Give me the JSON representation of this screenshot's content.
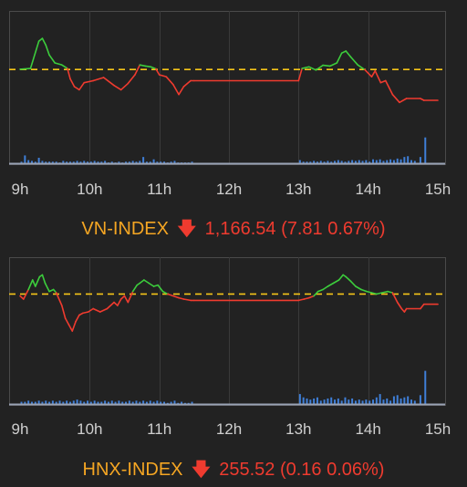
{
  "colors": {
    "up": "#3ccd3c",
    "down": "#ef3b2f",
    "reference": "#f5c518",
    "volume": "#3f7fd8",
    "index_name": "#f5a623",
    "frame": "#4a4a4a",
    "baseline": "#9aa3b5"
  },
  "chart_data": [
    {
      "type": "line",
      "x_ticks": [
        "9h",
        "10h",
        "11h",
        "12h",
        "13h",
        "14h",
        "15h"
      ],
      "xlim": [
        9,
        15
      ],
      "ylim": [
        1155,
        1185
      ],
      "reference": 1174.35,
      "index": {
        "name": "VN-INDEX",
        "arrow": "🡇",
        "value_text": "1,166.54 (7.81 0.67%)"
      },
      "series": [
        {
          "values": [
            [
              9.0,
              1174.4
            ],
            [
              9.15,
              1174.6
            ],
            [
              9.27,
              1181.5
            ],
            [
              9.32,
              1182.2
            ],
            [
              9.37,
              1180.5
            ],
            [
              9.42,
              1178.0
            ],
            [
              9.5,
              1176.0
            ],
            [
              9.6,
              1175.5
            ],
            [
              9.68,
              1174.6
            ],
            [
              9.72,
              1172.0
            ],
            [
              9.78,
              1170.0
            ],
            [
              9.85,
              1169.2
            ],
            [
              9.92,
              1171.0
            ],
            [
              10.05,
              1171.5
            ],
            [
              10.2,
              1172.3
            ],
            [
              10.35,
              1170.3
            ],
            [
              10.45,
              1169.2
            ],
            [
              10.55,
              1170.8
            ],
            [
              10.65,
              1173.0
            ],
            [
              10.72,
              1175.5
            ],
            [
              10.8,
              1175.2
            ],
            [
              10.88,
              1175.0
            ],
            [
              10.95,
              1174.5
            ],
            [
              11.0,
              1173.0
            ],
            [
              11.1,
              1172.5
            ],
            [
              11.2,
              1170.5
            ],
            [
              11.28,
              1168.0
            ],
            [
              11.35,
              1170.0
            ],
            [
              11.45,
              1171.5
            ],
            [
              11.5,
              1171.5
            ],
            [
              13.0,
              1171.5
            ],
            [
              13.05,
              1174.6
            ],
            [
              13.15,
              1175.0
            ],
            [
              13.25,
              1174.2
            ],
            [
              13.35,
              1175.4
            ],
            [
              13.45,
              1175.2
            ],
            [
              13.55,
              1176.0
            ],
            [
              13.62,
              1178.5
            ],
            [
              13.68,
              1179.0
            ],
            [
              13.75,
              1177.5
            ],
            [
              13.85,
              1175.5
            ],
            [
              13.95,
              1174.3
            ],
            [
              14.05,
              1172.5
            ],
            [
              14.1,
              1174.0
            ],
            [
              14.18,
              1171.0
            ],
            [
              14.25,
              1171.5
            ],
            [
              14.35,
              1168.0
            ],
            [
              14.45,
              1166.0
            ],
            [
              14.55,
              1167.0
            ],
            [
              14.75,
              1167.0
            ],
            [
              14.8,
              1166.54
            ],
            [
              15.0,
              1166.54
            ]
          ]
        }
      ],
      "volume": [
        [
          9.02,
          2
        ],
        [
          9.07,
          10
        ],
        [
          9.12,
          4
        ],
        [
          9.17,
          3
        ],
        [
          9.22,
          2
        ],
        [
          9.27,
          7
        ],
        [
          9.32,
          3
        ],
        [
          9.37,
          2
        ],
        [
          9.42,
          2
        ],
        [
          9.47,
          2
        ],
        [
          9.52,
          2
        ],
        [
          9.57,
          1
        ],
        [
          9.62,
          3
        ],
        [
          9.67,
          2
        ],
        [
          9.72,
          2
        ],
        [
          9.77,
          2
        ],
        [
          9.82,
          3
        ],
        [
          9.87,
          2
        ],
        [
          9.92,
          3
        ],
        [
          9.97,
          2
        ],
        [
          10.02,
          2
        ],
        [
          10.07,
          3
        ],
        [
          10.12,
          2
        ],
        [
          10.17,
          2
        ],
        [
          10.22,
          3
        ],
        [
          10.27,
          1
        ],
        [
          10.32,
          2
        ],
        [
          10.37,
          1
        ],
        [
          10.42,
          2
        ],
        [
          10.47,
          1
        ],
        [
          10.52,
          2
        ],
        [
          10.57,
          2
        ],
        [
          10.62,
          3
        ],
        [
          10.67,
          2
        ],
        [
          10.72,
          3
        ],
        [
          10.77,
          8
        ],
        [
          10.82,
          2
        ],
        [
          10.87,
          2
        ],
        [
          10.92,
          5
        ],
        [
          10.97,
          2
        ],
        [
          11.02,
          2
        ],
        [
          11.07,
          2
        ],
        [
          11.12,
          1
        ],
        [
          11.17,
          2
        ],
        [
          11.22,
          3
        ],
        [
          11.27,
          1
        ],
        [
          11.32,
          1
        ],
        [
          11.37,
          1
        ],
        [
          11.42,
          1
        ],
        [
          11.47,
          2
        ],
        [
          13.02,
          4
        ],
        [
          13.07,
          2
        ],
        [
          13.12,
          2
        ],
        [
          13.17,
          2
        ],
        [
          13.22,
          3
        ],
        [
          13.27,
          2
        ],
        [
          13.32,
          3
        ],
        [
          13.37,
          2
        ],
        [
          13.42,
          3
        ],
        [
          13.47,
          2
        ],
        [
          13.52,
          3
        ],
        [
          13.57,
          4
        ],
        [
          13.62,
          3
        ],
        [
          13.67,
          2
        ],
        [
          13.72,
          3
        ],
        [
          13.77,
          4
        ],
        [
          13.82,
          3
        ],
        [
          13.87,
          4
        ],
        [
          13.92,
          3
        ],
        [
          13.97,
          4
        ],
        [
          14.02,
          2
        ],
        [
          14.07,
          5
        ],
        [
          14.12,
          4
        ],
        [
          14.17,
          5
        ],
        [
          14.22,
          3
        ],
        [
          14.27,
          4
        ],
        [
          14.32,
          5
        ],
        [
          14.37,
          4
        ],
        [
          14.42,
          6
        ],
        [
          14.47,
          5
        ],
        [
          14.52,
          8
        ],
        [
          14.57,
          9
        ],
        [
          14.62,
          4
        ],
        [
          14.67,
          3
        ],
        [
          14.75,
          8
        ],
        [
          14.82,
          33
        ]
      ],
      "volume_max": 35
    },
    {
      "type": "line",
      "x_ticks": [
        "9h",
        "10h",
        "11h",
        "12h",
        "13h",
        "14h",
        "15h"
      ],
      "xlim": [
        9,
        15
      ],
      "ylim": [
        254.6,
        256.2
      ],
      "reference": 255.68,
      "index": {
        "name": "HNX-INDEX",
        "arrow": "🡇",
        "value_text": "255.52 (0.16 0.06%)"
      },
      "series": [
        {
          "values": [
            [
              9.0,
              255.65
            ],
            [
              9.05,
              255.6
            ],
            [
              9.12,
              255.75
            ],
            [
              9.18,
              255.9
            ],
            [
              9.22,
              255.8
            ],
            [
              9.28,
              255.95
            ],
            [
              9.32,
              255.98
            ],
            [
              9.36,
              255.85
            ],
            [
              9.42,
              255.72
            ],
            [
              9.48,
              255.75
            ],
            [
              9.52,
              255.7
            ],
            [
              9.6,
              255.5
            ],
            [
              9.65,
              255.3
            ],
            [
              9.7,
              255.2
            ],
            [
              9.75,
              255.1
            ],
            [
              9.8,
              255.25
            ],
            [
              9.85,
              255.35
            ],
            [
              9.9,
              255.38
            ],
            [
              9.98,
              255.4
            ],
            [
              10.05,
              255.45
            ],
            [
              10.15,
              255.4
            ],
            [
              10.25,
              255.45
            ],
            [
              10.35,
              255.55
            ],
            [
              10.4,
              255.5
            ],
            [
              10.45,
              255.6
            ],
            [
              10.5,
              255.65
            ],
            [
              10.55,
              255.55
            ],
            [
              10.62,
              255.72
            ],
            [
              10.68,
              255.82
            ],
            [
              10.72,
              255.85
            ],
            [
              10.78,
              255.9
            ],
            [
              10.85,
              255.85
            ],
            [
              10.92,
              255.8
            ],
            [
              10.98,
              255.82
            ],
            [
              11.05,
              255.72
            ],
            [
              11.12,
              255.68
            ],
            [
              11.2,
              255.65
            ],
            [
              11.28,
              255.62
            ],
            [
              11.35,
              255.6
            ],
            [
              11.45,
              255.58
            ],
            [
              11.5,
              255.58
            ],
            [
              13.0,
              255.58
            ],
            [
              13.08,
              255.6
            ],
            [
              13.15,
              255.62
            ],
            [
              13.22,
              255.65
            ],
            [
              13.28,
              255.72
            ],
            [
              13.35,
              255.75
            ],
            [
              13.42,
              255.8
            ],
            [
              13.5,
              255.85
            ],
            [
              13.58,
              255.9
            ],
            [
              13.64,
              255.98
            ],
            [
              13.68,
              255.95
            ],
            [
              13.75,
              255.88
            ],
            [
              13.82,
              255.8
            ],
            [
              13.9,
              255.75
            ],
            [
              13.98,
              255.72
            ],
            [
              14.05,
              255.7
            ],
            [
              14.12,
              255.68
            ],
            [
              14.2,
              255.7
            ],
            [
              14.28,
              255.72
            ],
            [
              14.35,
              255.7
            ],
            [
              14.42,
              255.55
            ],
            [
              14.48,
              255.45
            ],
            [
              14.52,
              255.4
            ],
            [
              14.55,
              255.45
            ],
            [
              14.75,
              255.45
            ],
            [
              14.8,
              255.52
            ],
            [
              15.0,
              255.52
            ]
          ]
        }
      ],
      "volume": [
        [
          9.02,
          2
        ],
        [
          9.07,
          2
        ],
        [
          9.12,
          3
        ],
        [
          9.17,
          2
        ],
        [
          9.22,
          2
        ],
        [
          9.27,
          3
        ],
        [
          9.32,
          2
        ],
        [
          9.37,
          3
        ],
        [
          9.42,
          2
        ],
        [
          9.47,
          3
        ],
        [
          9.52,
          2
        ],
        [
          9.57,
          3
        ],
        [
          9.62,
          2
        ],
        [
          9.67,
          3
        ],
        [
          9.72,
          2
        ],
        [
          9.77,
          3
        ],
        [
          9.82,
          4
        ],
        [
          9.87,
          3
        ],
        [
          9.92,
          2
        ],
        [
          9.97,
          3
        ],
        [
          10.02,
          2
        ],
        [
          10.07,
          3
        ],
        [
          10.12,
          2
        ],
        [
          10.17,
          2
        ],
        [
          10.22,
          3
        ],
        [
          10.27,
          2
        ],
        [
          10.32,
          3
        ],
        [
          10.37,
          2
        ],
        [
          10.42,
          3
        ],
        [
          10.47,
          2
        ],
        [
          10.52,
          2
        ],
        [
          10.57,
          3
        ],
        [
          10.62,
          2
        ],
        [
          10.67,
          3
        ],
        [
          10.72,
          2
        ],
        [
          10.77,
          3
        ],
        [
          10.82,
          2
        ],
        [
          10.87,
          3
        ],
        [
          10.92,
          2
        ],
        [
          10.97,
          3
        ],
        [
          11.02,
          2
        ],
        [
          11.07,
          2
        ],
        [
          11.12,
          1
        ],
        [
          11.17,
          2
        ],
        [
          11.22,
          3
        ],
        [
          11.27,
          1
        ],
        [
          11.32,
          2
        ],
        [
          11.37,
          1
        ],
        [
          11.42,
          1
        ],
        [
          11.47,
          2
        ],
        [
          13.02,
          9
        ],
        [
          13.07,
          6
        ],
        [
          13.12,
          5
        ],
        [
          13.17,
          4
        ],
        [
          13.22,
          5
        ],
        [
          13.27,
          6
        ],
        [
          13.32,
          3
        ],
        [
          13.37,
          4
        ],
        [
          13.42,
          5
        ],
        [
          13.47,
          6
        ],
        [
          13.52,
          4
        ],
        [
          13.57,
          5
        ],
        [
          13.62,
          3
        ],
        [
          13.67,
          6
        ],
        [
          13.72,
          4
        ],
        [
          13.77,
          5
        ],
        [
          13.82,
          3
        ],
        [
          13.87,
          4
        ],
        [
          13.92,
          3
        ],
        [
          13.97,
          4
        ],
        [
          14.02,
          3
        ],
        [
          14.07,
          4
        ],
        [
          14.12,
          6
        ],
        [
          14.17,
          9
        ],
        [
          14.22,
          4
        ],
        [
          14.27,
          5
        ],
        [
          14.32,
          3
        ],
        [
          14.37,
          7
        ],
        [
          14.42,
          8
        ],
        [
          14.47,
          5
        ],
        [
          14.52,
          6
        ],
        [
          14.57,
          7
        ],
        [
          14.62,
          4
        ],
        [
          14.67,
          3
        ],
        [
          14.75,
          8
        ],
        [
          14.82,
          30
        ]
      ],
      "volume_max": 33
    }
  ]
}
